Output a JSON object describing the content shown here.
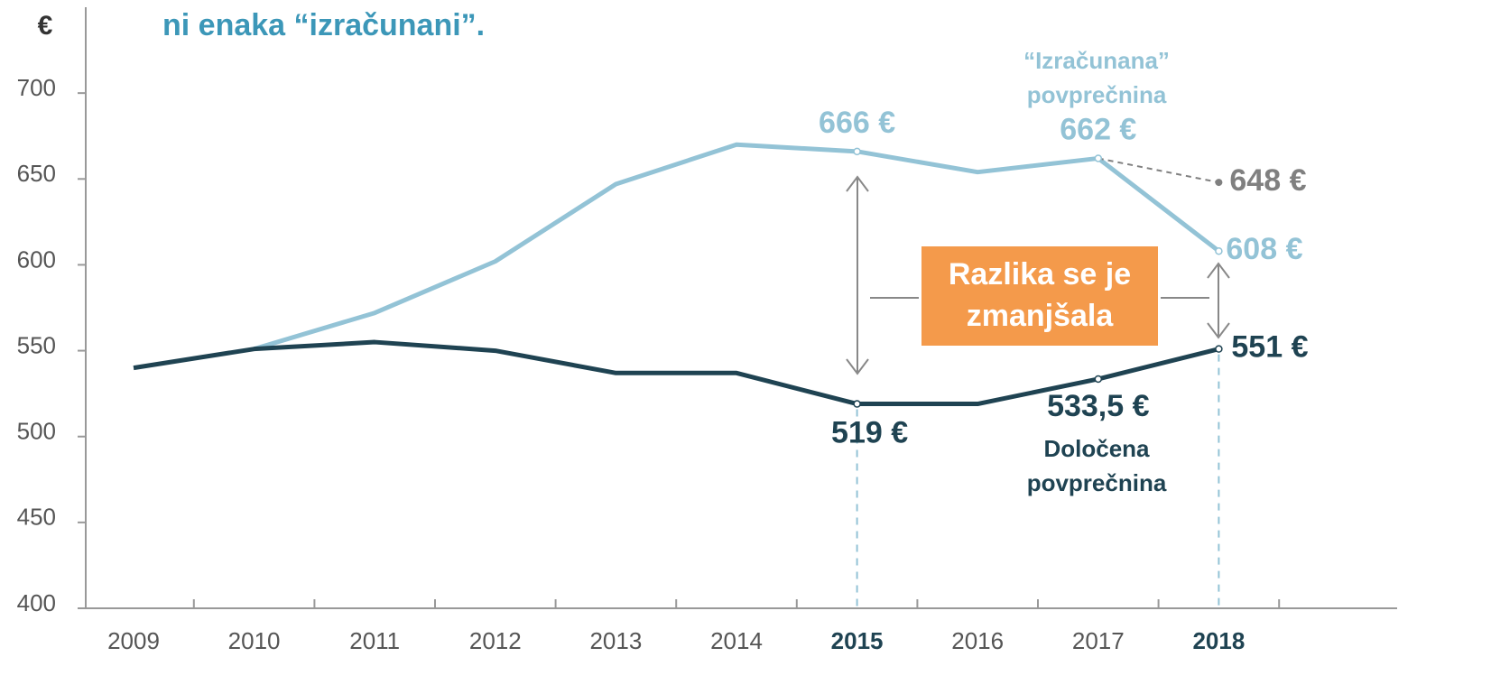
{
  "chart_data": {
    "type": "line",
    "title": "ni enaka “izračunani”.",
    "y_unit": "€",
    "categories": [
      "2009",
      "2010",
      "2011",
      "2012",
      "2013",
      "2014",
      "2015",
      "2016",
      "2017",
      "2018"
    ],
    "highlight_categories": [
      6,
      9
    ],
    "series": [
      {
        "name": "“Izračunana” povprečnina",
        "color": "#93c3d6",
        "values": [
          null,
          551,
          572,
          602,
          647,
          670,
          666,
          654,
          662,
          608
        ],
        "value_labels": [
          null,
          null,
          null,
          null,
          null,
          null,
          "666 €",
          null,
          "662 €",
          "608 €"
        ]
      },
      {
        "name": "Določena povprečnina",
        "color": "#1f4352",
        "values": [
          540,
          551,
          555,
          550,
          537,
          537,
          519,
          519,
          533.5,
          551
        ],
        "value_labels": [
          null,
          null,
          null,
          null,
          null,
          null,
          "519 €",
          null,
          "533,5 €",
          "551 €"
        ]
      },
      {
        "color": "#808080",
        "dashed": true,
        "values": [
          null,
          null,
          null,
          null,
          null,
          null,
          null,
          null,
          662,
          648
        ],
        "value_labels": [
          null,
          null,
          null,
          null,
          null,
          null,
          null,
          null,
          null,
          "648 €"
        ]
      }
    ],
    "annotation": "Razlika se je zmanjšala",
    "ylim": [
      400,
      750
    ],
    "yticks": [
      400,
      450,
      500,
      550,
      600,
      650,
      700
    ],
    "grid": false
  }
}
